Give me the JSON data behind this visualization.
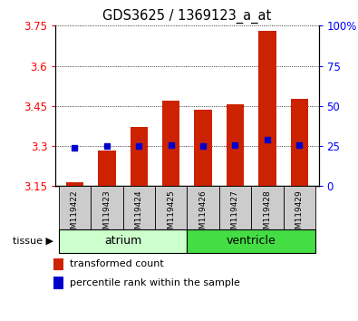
{
  "title": "GDS3625 / 1369123_a_at",
  "samples": [
    "GSM119422",
    "GSM119423",
    "GSM119424",
    "GSM119425",
    "GSM119426",
    "GSM119427",
    "GSM119428",
    "GSM119429"
  ],
  "bar_tops": [
    3.163,
    3.283,
    3.37,
    3.47,
    3.435,
    3.455,
    3.73,
    3.475
  ],
  "bar_base": 3.15,
  "percentile_values": [
    3.295,
    3.3,
    3.3,
    3.305,
    3.3,
    3.305,
    3.325,
    3.305
  ],
  "bar_color": "#cc2200",
  "percentile_color": "#0000cc",
  "ylim": [
    3.15,
    3.75
  ],
  "yticks_left": [
    3.15,
    3.3,
    3.45,
    3.6,
    3.75
  ],
  "yticks_right": [
    0,
    25,
    50,
    75,
    100
  ],
  "ytick_labels_left": [
    "3.15",
    "3.3",
    "3.45",
    "3.6",
    "3.75"
  ],
  "ytick_labels_right": [
    "0",
    "25",
    "50",
    "75",
    "100%"
  ],
  "atrium_color": "#ccffcc",
  "ventricle_color": "#44dd44",
  "tissue_label": "tissue",
  "legend_items": [
    {
      "label": "transformed count",
      "color": "#cc2200"
    },
    {
      "label": "percentile rank within the sample",
      "color": "#0000cc"
    }
  ],
  "grid_color": "black",
  "grid_linestyle": ":",
  "bar_width": 0.55,
  "sample_box_color": "#cccccc",
  "sample_box_edge": "#888888"
}
